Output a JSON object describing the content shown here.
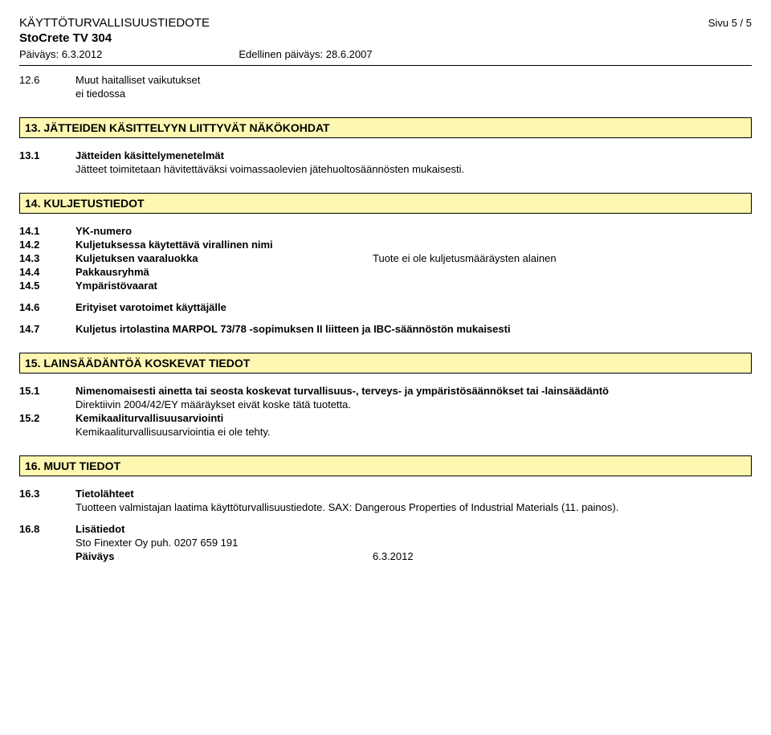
{
  "header": {
    "doc_title": "KÄYTTÖTURVALLISUUSTIEDOTE",
    "page_num": "Sivu 5 / 5",
    "product": "StoCrete TV 304",
    "date_label": "Päiväys: 6.3.2012",
    "prev_date_label": "Edellinen päiväys: 28.6.2007"
  },
  "s12_6": {
    "num": "12.6",
    "title": "Muut haitalliset vaikutukset",
    "text": "ei tiedossa"
  },
  "s13": {
    "banner": "13. JÄTTEIDEN KÄSITTELYYN LIITTYVÄT NÄKÖKOHDAT",
    "s13_1": {
      "num": "13.1",
      "title": "Jätteiden käsittelymenetelmät",
      "text": "Jätteet toimitetaan hävitettäväksi voimassaolevien jätehuoltosäännösten mukaisesti."
    }
  },
  "s14": {
    "banner": "14. KULJETUSTIEDOT",
    "s14_1": {
      "num": "14.1",
      "title": "YK-numero"
    },
    "s14_2": {
      "num": "14.2",
      "title": "Kuljetuksessa käytettävä virallinen nimi"
    },
    "s14_3": {
      "num": "14.3",
      "title": "Kuljetuksen vaaraluokka",
      "value": "Tuote ei ole kuljetusmääräysten alainen"
    },
    "s14_4": {
      "num": "14.4",
      "title": "Pakkausryhmä"
    },
    "s14_5": {
      "num": "14.5",
      "title": "Ympäristövaarat"
    },
    "s14_6": {
      "num": "14.6",
      "title": "Erityiset varotoimet käyttäjälle"
    },
    "s14_7": {
      "num": "14.7",
      "title": "Kuljetus irtolastina MARPOL 73/78 -sopimuksen II liitteen ja IBC-säännöstön mukaisesti"
    }
  },
  "s15": {
    "banner": "15. LAINSÄÄDÄNTÖÄ KOSKEVAT TIEDOT",
    "s15_1": {
      "num": "15.1",
      "title": "Nimenomaisesti ainetta tai seosta koskevat turvallisuus-, terveys- ja ympäristösäännökset tai -lainsäädäntö",
      "text": "Direktiivin 2004/42/EY määräykset eivät koske tätä tuotetta."
    },
    "s15_2": {
      "num": "15.2",
      "title": "Kemikaaliturvallisuusarviointi",
      "text": "Kemikaaliturvallisuusarviointia ei ole tehty."
    }
  },
  "s16": {
    "banner": "16. MUUT TIEDOT",
    "s16_3": {
      "num": "16.3",
      "title": "Tietolähteet",
      "text": "Tuotteen valmistajan laatima käyttöturvallisuustiedote.  SAX: Dangerous Properties of Industrial Materials (11. painos)."
    },
    "s16_8": {
      "num": "16.8",
      "title": "Lisätiedot",
      "text": "Sto Finexter Oy   puh. 0207 659 191",
      "date_label": "Päiväys",
      "date_value": "6.3.2012"
    }
  }
}
